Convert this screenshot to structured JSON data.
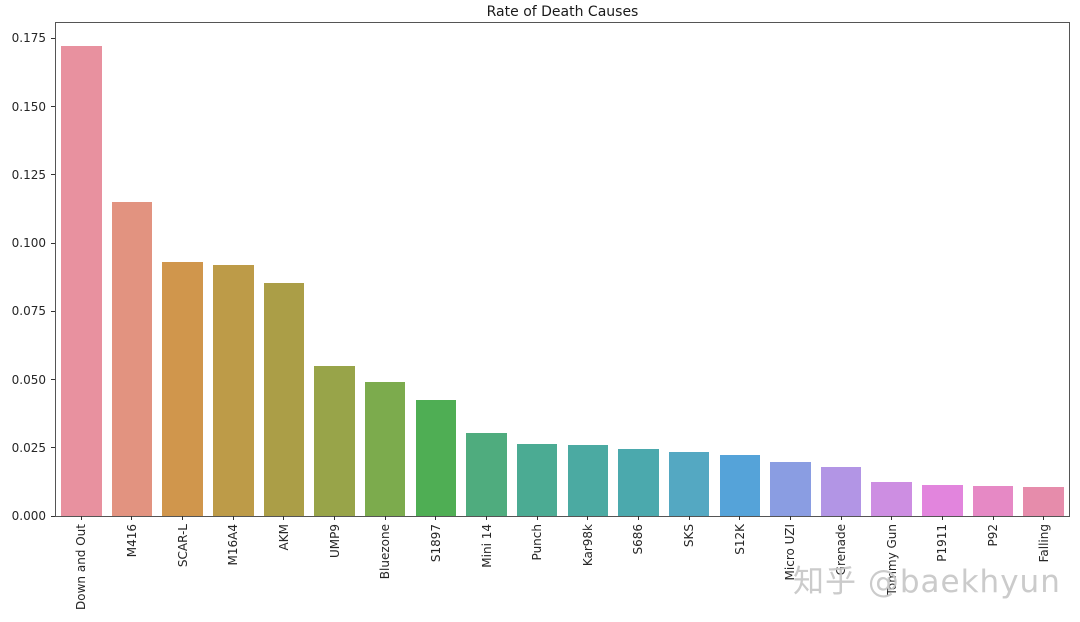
{
  "watermark": "知乎 @baekhyun",
  "chart_data": {
    "type": "bar",
    "title": "Rate of Death Causes",
    "xlabel": "",
    "ylabel": "",
    "grid": false,
    "legend": null,
    "ylim": [
      0,
      0.1806
    ],
    "yticks": [
      0.0,
      0.025,
      0.05,
      0.075,
      0.1,
      0.125,
      0.15,
      0.175
    ],
    "ytick_labels": [
      "0.000",
      "0.025",
      "0.050",
      "0.075",
      "0.100",
      "0.125",
      "0.150",
      "0.175"
    ],
    "xtick_rotation_deg": 90,
    "bar_width_fraction": 0.8,
    "categories": [
      "Down and Out",
      "M416",
      "SCAR-L",
      "M16A4",
      "AKM",
      "UMP9",
      "Bluezone",
      "S1897",
      "Mini 14",
      "Punch",
      "Kar98k",
      "S686",
      "SKS",
      "S12K",
      "Micro UZI",
      "Grenade",
      "Tommy Gun",
      "P1911",
      "P92",
      "Falling"
    ],
    "values": [
      0.172,
      0.115,
      0.093,
      0.092,
      0.0855,
      0.055,
      0.049,
      0.0425,
      0.0303,
      0.0265,
      0.026,
      0.0245,
      0.0233,
      0.0222,
      0.0198,
      0.0178,
      0.0124,
      0.0112,
      0.011,
      0.0107
    ],
    "bar_colors": [
      "#e8919f",
      "#e29380",
      "#d0964c",
      "#bd9b48",
      "#ab9e47",
      "#98a449",
      "#7cab4d",
      "#4fae54",
      "#4fac7e",
      "#4bab93",
      "#4baaa2",
      "#4ba9ad",
      "#54a8c2",
      "#55a3d9",
      "#8a9de2",
      "#b295e5",
      "#cd8ee2",
      "#e285dd",
      "#e689c5",
      "#e68cab"
    ],
    "axis_color": "#555555",
    "text_color": "#262626"
  }
}
